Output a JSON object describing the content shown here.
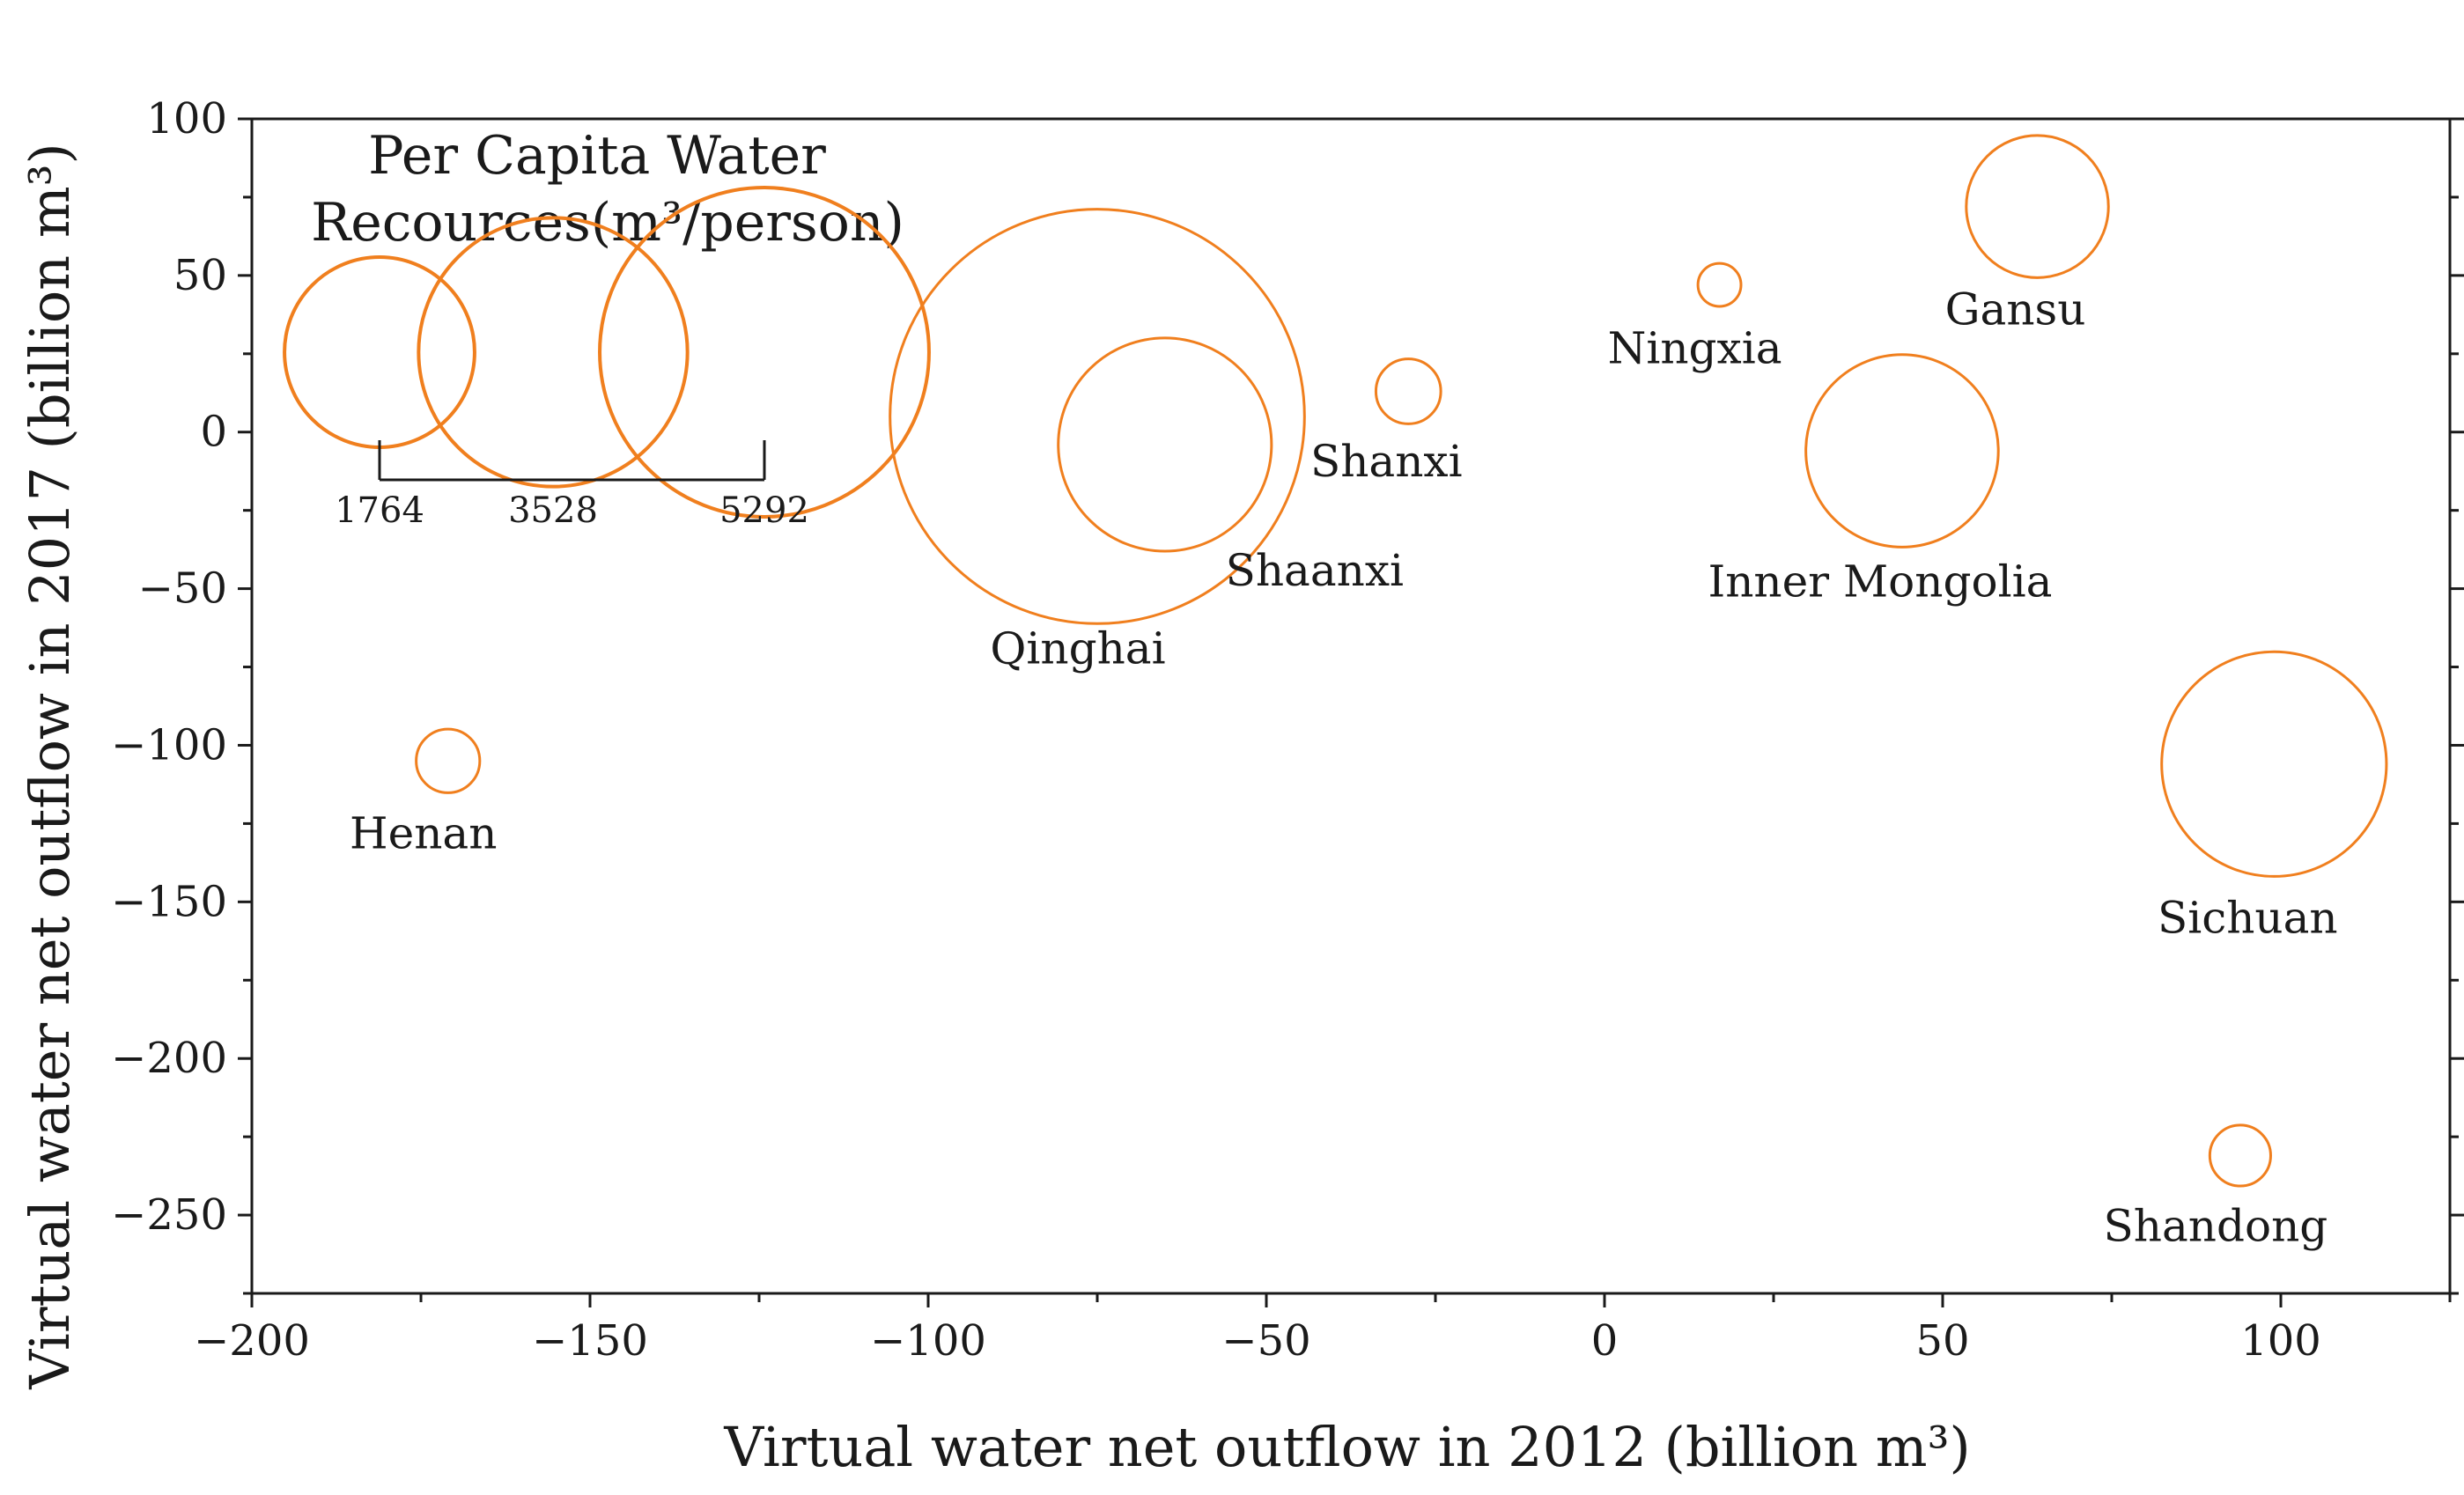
{
  "chart_data": {
    "type": "scatter",
    "subtype": "bubble",
    "xlabel": "Virtual water net outflow in 2012 (billion m³)",
    "ylabel": "Virtual water net outflow in 2017 (billion m³)",
    "xlim": [
      -200,
      125
    ],
    "ylim": [
      -275,
      100
    ],
    "x_ticks": [
      -200,
      -150,
      -100,
      -50,
      0,
      50,
      100
    ],
    "y_ticks": [
      100,
      50,
      0,
      -50,
      -100,
      -150,
      -200,
      -250
    ],
    "grid": false,
    "bubble_color": "#f07f1e",
    "size_legend": {
      "title_lines": [
        "Per Capita Water",
        "Recources(m³/person)"
      ],
      "values": [
        1764,
        3528,
        5292
      ],
      "value_labels": [
        "1764",
        "3528",
        "5292"
      ]
    },
    "points": [
      {
        "label": "Qinghai",
        "x": -75,
        "y": 5,
        "size": 10200
      },
      {
        "label": "Shaanxi",
        "x": -65,
        "y": -4,
        "size": 2700
      },
      {
        "label": "Shanxi",
        "x": -29,
        "y": 13,
        "size": 250
      },
      {
        "label": "Ningxia",
        "x": 17,
        "y": 47,
        "size": 110
      },
      {
        "label": "Gansu",
        "x": 64,
        "y": 72,
        "size": 1200
      },
      {
        "label": "Inner Mongolia",
        "x": 44,
        "y": -6,
        "size": 2200
      },
      {
        "label": "Henan",
        "x": -171,
        "y": -105,
        "size": 240
      },
      {
        "label": "Sichuan",
        "x": 99,
        "y": -106,
        "size": 3000
      },
      {
        "label": "Shandong",
        "x": 94,
        "y": -231,
        "size": 220
      }
    ]
  }
}
